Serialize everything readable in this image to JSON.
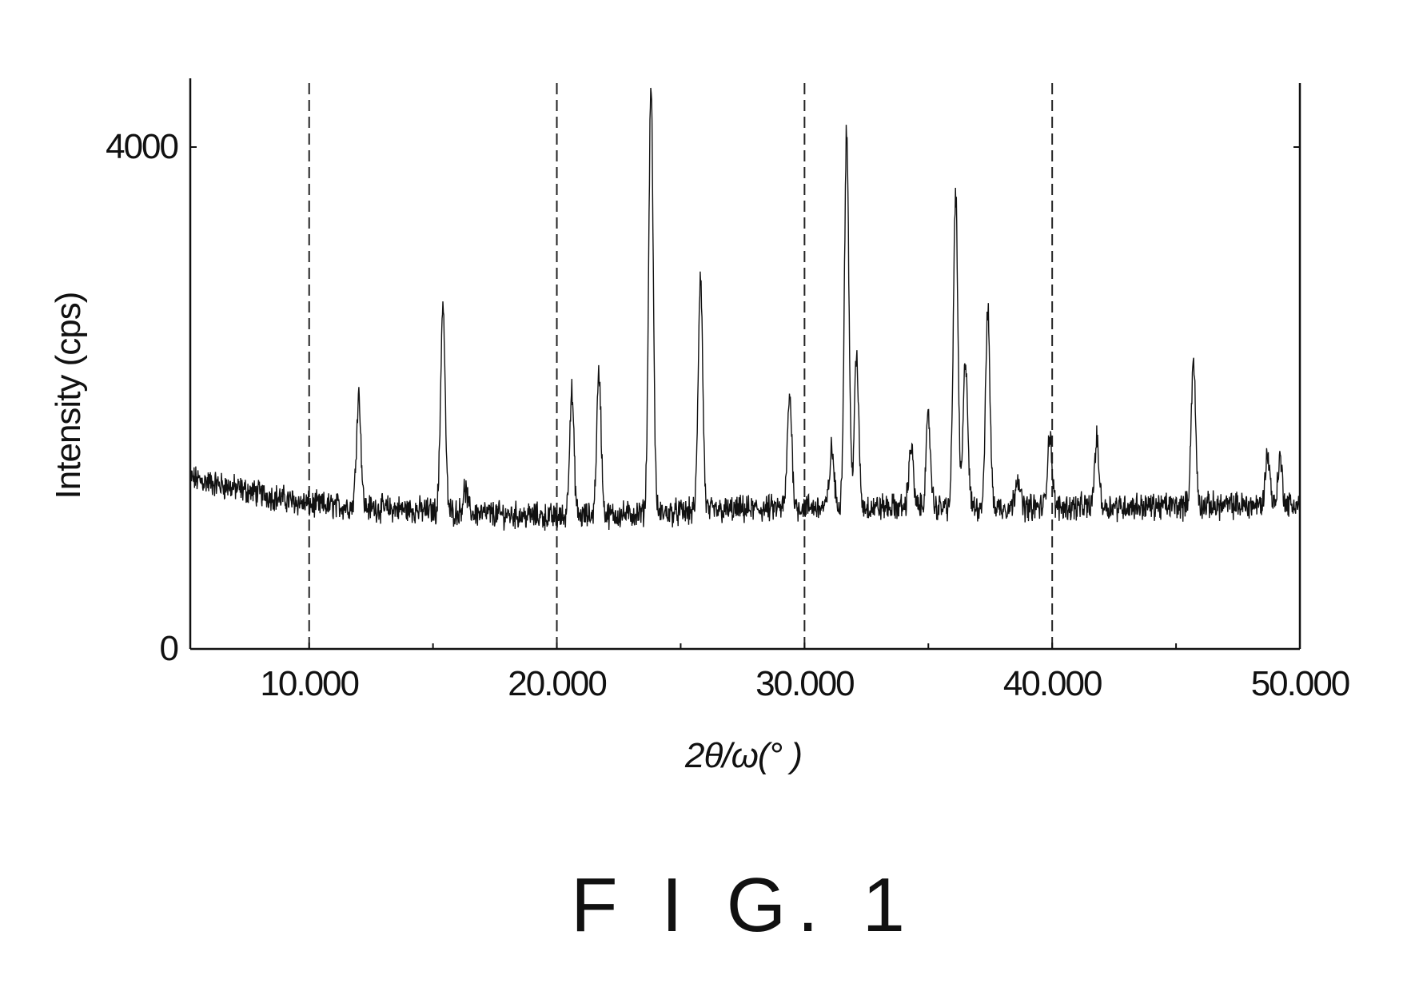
{
  "chart_data": {
    "type": "line",
    "title": "",
    "xlabel": "2θ/ω(° )",
    "ylabel": "Intensity (cps)",
    "xlim": [
      5.2,
      50.0
    ],
    "ylim": [
      0,
      4500
    ],
    "x_ticks": [
      10.0,
      20.0,
      30.0,
      40.0,
      50.0
    ],
    "x_tick_labels": [
      "10.000",
      "20.000",
      "30.000",
      "40.000",
      "50.000"
    ],
    "y_ticks": [
      0,
      4000
    ],
    "y_tick_labels": [
      "0",
      "4000"
    ],
    "vertical_gridlines": [
      10.0,
      20.0,
      30.0,
      40.0
    ],
    "grid_style": "dashed vertical",
    "legend": "none",
    "line_color": "#111111",
    "baseline": [
      {
        "x": 5.2,
        "y": 1360
      },
      {
        "x": 10.0,
        "y": 1150
      },
      {
        "x": 20.0,
        "y": 1050
      },
      {
        "x": 30.0,
        "y": 1130
      },
      {
        "x": 40.0,
        "y": 1130
      },
      {
        "x": 50.0,
        "y": 1150
      }
    ],
    "peaks": [
      {
        "x": 12.0,
        "y": 2030
      },
      {
        "x": 15.4,
        "y": 2750
      },
      {
        "x": 16.3,
        "y": 1270
      },
      {
        "x": 20.6,
        "y": 2040
      },
      {
        "x": 21.7,
        "y": 2190
      },
      {
        "x": 23.8,
        "y": 4500
      },
      {
        "x": 25.8,
        "y": 2970
      },
      {
        "x": 29.4,
        "y": 2020
      },
      {
        "x": 31.1,
        "y": 1590
      },
      {
        "x": 31.7,
        "y": 4120
      },
      {
        "x": 32.1,
        "y": 2300
      },
      {
        "x": 34.3,
        "y": 1620
      },
      {
        "x": 35.0,
        "y": 1830
      },
      {
        "x": 36.1,
        "y": 3630
      },
      {
        "x": 36.5,
        "y": 2310
      },
      {
        "x": 37.4,
        "y": 2680
      },
      {
        "x": 38.6,
        "y": 1390
      },
      {
        "x": 39.9,
        "y": 1720
      },
      {
        "x": 41.8,
        "y": 1660
      },
      {
        "x": 45.7,
        "y": 2280
      },
      {
        "x": 48.7,
        "y": 1560
      },
      {
        "x": 49.2,
        "y": 1510
      }
    ]
  },
  "figure_caption": "F I G. 1"
}
